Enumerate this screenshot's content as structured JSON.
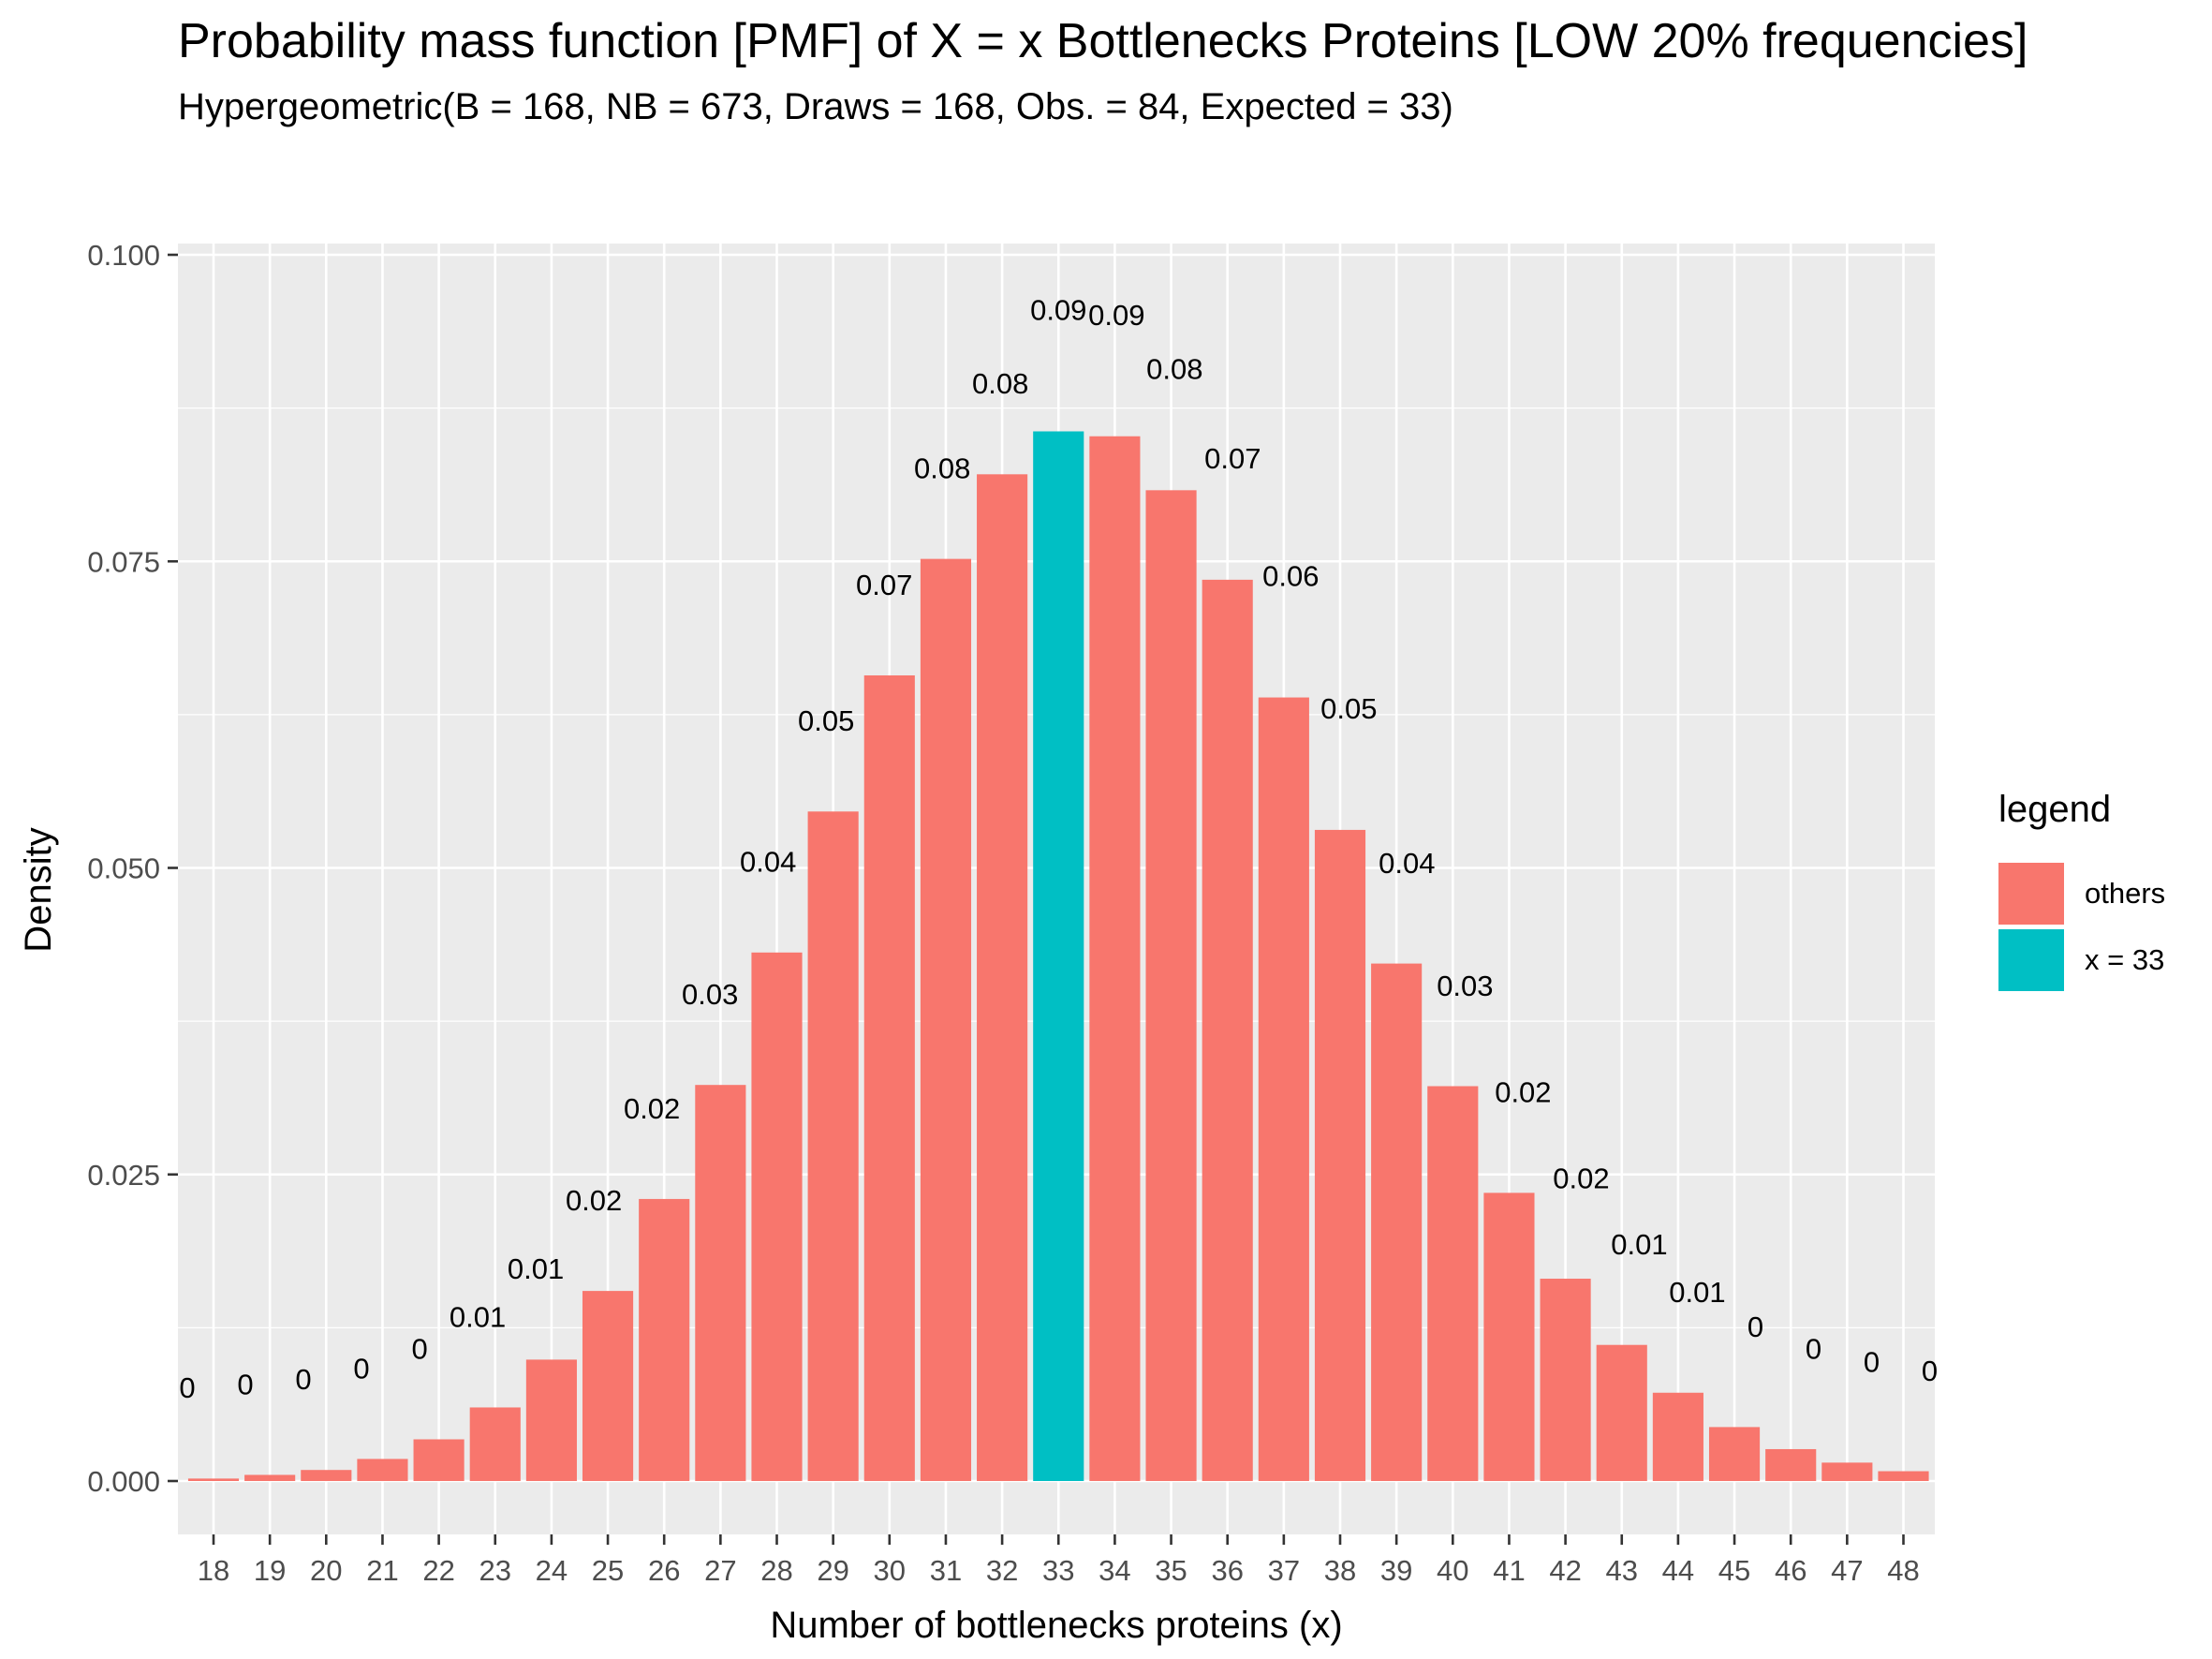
{
  "chart_data": {
    "type": "bar",
    "title": "Probability mass function [PMF] of X = x Bottlenecks Proteins [LOW 20% frequencies]",
    "subtitle": "Hypergeometric(B = 168, NB = 673, Draws = 168, Obs. = 84, Expected = 33)",
    "xlabel": "Number of bottlenecks proteins (x)",
    "ylabel": "Density",
    "ylim": [
      0,
      0.1
    ],
    "yticks": [
      "0.000",
      "0.025",
      "0.050",
      "0.075",
      "0.100"
    ],
    "ytick_values": [
      0,
      0.025,
      0.05,
      0.075,
      0.1
    ],
    "categories": [
      "18",
      "19",
      "20",
      "21",
      "22",
      "23",
      "24",
      "25",
      "26",
      "27",
      "28",
      "29",
      "30",
      "31",
      "32",
      "33",
      "34",
      "35",
      "36",
      "37",
      "38",
      "39",
      "40",
      "41",
      "42",
      "43",
      "44",
      "45",
      "46",
      "47",
      "48"
    ],
    "values": [
      0.0002,
      0.0005,
      0.0009,
      0.0018,
      0.0034,
      0.006,
      0.0099,
      0.0155,
      0.023,
      0.0323,
      0.0431,
      0.0546,
      0.0657,
      0.0752,
      0.0821,
      0.0856,
      0.0852,
      0.0808,
      0.0735,
      0.0639,
      0.0531,
      0.0422,
      0.0322,
      0.0235,
      0.0165,
      0.0111,
      0.0072,
      0.0044,
      0.0026,
      0.0015,
      0.0008
    ],
    "data_labels": [
      "0",
      "0",
      "0",
      "0",
      "0",
      "0.01",
      "0.01",
      "0.02",
      "0.02",
      "0.03",
      "0.04",
      "0.05",
      "0.07",
      "0.08",
      "0.08",
      "0.09",
      "0.09",
      "0.08",
      "0.07",
      "0.06",
      "0.05",
      "0.04",
      "0.03",
      "0.02",
      "0.02",
      "0.01",
      "0.01",
      "0",
      "0",
      "0",
      "0"
    ],
    "groups": [
      "others",
      "others",
      "others",
      "others",
      "others",
      "others",
      "others",
      "others",
      "others",
      "others",
      "others",
      "others",
      "others",
      "others",
      "others",
      "x = 33",
      "others",
      "others",
      "others",
      "others",
      "others",
      "others",
      "others",
      "others",
      "others",
      "others",
      "others",
      "others",
      "others",
      "others",
      "others"
    ],
    "legend": {
      "title": "legend",
      "placement": "right",
      "entries": [
        {
          "label": "others",
          "color": "#F8766D"
        },
        {
          "label": "x = 33",
          "color": "#00BFC4"
        }
      ]
    },
    "grid": true,
    "panel_background": "#EBEBEB"
  }
}
